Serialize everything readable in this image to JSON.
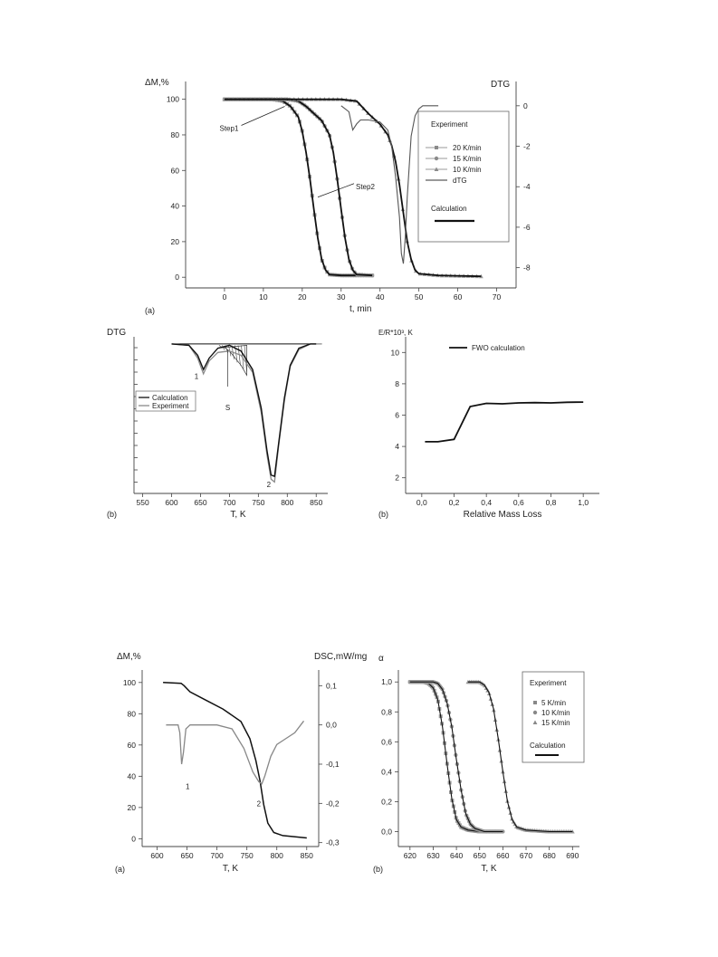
{
  "chart_data": [
    {
      "panel_label": "(a)",
      "type": "line",
      "xlabel": "t, min",
      "ylabel": "ΔM,%",
      "y2label": "DTG",
      "xlim": [
        -10,
        75
      ],
      "ylim": [
        -6,
        110
      ],
      "y2lim": [
        -9,
        1.2
      ],
      "x_ticks": [
        0,
        10,
        20,
        30,
        40,
        50,
        60,
        70
      ],
      "y_ticks": [
        0,
        20,
        40,
        60,
        80,
        100
      ],
      "y2_ticks": [
        0,
        -2,
        -4,
        -6,
        -8
      ],
      "legend": {
        "placement": "right",
        "experiment_title": "Experiment",
        "entries": [
          "20 K/min",
          "15 K/min",
          "10 K/min",
          "dTG"
        ],
        "calculation_title": "Calculation"
      },
      "annotations": [
        {
          "text": "Step1",
          "x": 15.5,
          "y": 96
        },
        {
          "text": "Step2",
          "x": 24,
          "y": 45
        }
      ],
      "series": [
        {
          "name": "20 K/min",
          "x": [
            0,
            12,
            15,
            17,
            19,
            20,
            21,
            22,
            23,
            24,
            25,
            26,
            27,
            30,
            38
          ],
          "y": [
            100,
            100,
            99,
            96,
            90,
            82,
            70,
            55,
            38,
            22,
            10,
            4,
            1.5,
            1,
            1
          ]
        },
        {
          "name": "15 K/min",
          "x": [
            0,
            16,
            19,
            21,
            23,
            25,
            27,
            28,
            29,
            30,
            31,
            32,
            33,
            34,
            38
          ],
          "y": [
            100,
            100,
            99,
            96,
            92,
            88,
            80,
            70,
            55,
            38,
            22,
            10,
            4,
            1.5,
            1
          ]
        },
        {
          "name": "10 K/min",
          "x": [
            0,
            30,
            34,
            37,
            40,
            42,
            43,
            44,
            45,
            46,
            47,
            48,
            49,
            50,
            55,
            66
          ],
          "y": [
            100,
            100,
            99,
            92,
            86,
            80,
            74,
            65,
            52,
            36,
            20,
            10,
            4,
            2,
            1,
            0.5
          ]
        },
        {
          "name": "dTG",
          "axis": "y2",
          "x": [
            30,
            32,
            33,
            34,
            35,
            37,
            40,
            42,
            43,
            44,
            45,
            45.5,
            46,
            46.5,
            47,
            48,
            49,
            50,
            51,
            55
          ],
          "y": [
            0,
            -0.3,
            -1.2,
            -0.9,
            -0.7,
            -0.7,
            -0.8,
            -1.2,
            -2,
            -3.5,
            -5.5,
            -7.3,
            -7.8,
            -6.5,
            -4.5,
            -1.5,
            -0.5,
            -0.15,
            0,
            0
          ]
        }
      ]
    },
    {
      "panel_label": "(b)",
      "type": "line",
      "xlabel": "T, K",
      "ylabel": "DTG",
      "xlim": [
        535,
        870
      ],
      "ylim": [
        -1.05,
        0.05
      ],
      "x_ticks": [
        550,
        600,
        650,
        700,
        750,
        800,
        850
      ],
      "legend": {
        "placement": "left",
        "entries": [
          "Calculation",
          "Experiment"
        ]
      },
      "annotations": [
        {
          "text": "1",
          "x": 643,
          "y": -0.22
        },
        {
          "text": "S",
          "x": 697,
          "y": -0.35
        },
        {
          "text": "2",
          "x": 768,
          "y": -0.98
        }
      ],
      "series": [
        {
          "name": "Calculation",
          "x": [
            600,
            630,
            645,
            655,
            665,
            680,
            700,
            720,
            740,
            755,
            765,
            772,
            778,
            785,
            795,
            805,
            820,
            840,
            850
          ],
          "y": [
            0,
            -0.01,
            -0.08,
            -0.18,
            -0.1,
            -0.03,
            -0.01,
            -0.05,
            -0.18,
            -0.45,
            -0.75,
            -0.92,
            -0.93,
            -0.7,
            -0.38,
            -0.15,
            -0.03,
            0,
            0
          ]
        },
        {
          "name": "Experiment",
          "x": [
            600,
            630,
            645,
            655,
            665,
            680,
            700,
            720,
            740,
            755,
            765,
            772,
            778,
            785,
            795,
            805,
            820,
            840,
            850,
            860
          ],
          "y": [
            0,
            -0.01,
            -0.1,
            -0.21,
            -0.12,
            -0.06,
            -0.05,
            -0.08,
            -0.2,
            -0.48,
            -0.78,
            -0.95,
            -0.97,
            -0.72,
            -0.4,
            -0.16,
            -0.04,
            0,
            0,
            0
          ]
        }
      ]
    },
    {
      "panel_label": "(b)",
      "type": "line",
      "xlabel": "Relative Mass Loss",
      "ylabel": "E/R*10³, K",
      "xlim": [
        -0.1,
        1.1
      ],
      "ylim": [
        1,
        11
      ],
      "x_ticks": [
        "0,0",
        "0,2",
        "0,4",
        "0,6",
        "0,8",
        "1,0"
      ],
      "x_tick_values": [
        0,
        0.2,
        0.4,
        0.6,
        0.8,
        1.0
      ],
      "y_ticks": [
        2,
        4,
        6,
        8,
        10
      ],
      "legend": {
        "placement": "top",
        "entries": [
          "FWO calculation"
        ]
      },
      "series": [
        {
          "name": "FWO calculation",
          "x": [
            0.02,
            0.1,
            0.2,
            0.3,
            0.4,
            0.5,
            0.6,
            0.7,
            0.8,
            0.9,
            1.0
          ],
          "y": [
            4.3,
            4.3,
            4.45,
            6.55,
            6.75,
            6.72,
            6.78,
            6.8,
            6.78,
            6.82,
            6.83
          ]
        }
      ]
    },
    {
      "panel_label": "(a)",
      "type": "line",
      "xlabel": "T, K",
      "ylabel": "ΔM,%",
      "y2label": "DSC,mW/mg",
      "xlim": [
        575,
        870
      ],
      "ylim": [
        -5,
        108
      ],
      "y2lim": [
        -0.31,
        0.14
      ],
      "x_ticks": [
        600,
        650,
        700,
        750,
        800,
        850
      ],
      "y_ticks": [
        0,
        20,
        40,
        60,
        80,
        100
      ],
      "y2_ticks": [
        "0,1",
        "0,0",
        "-0,1",
        "-0,2",
        "-0,3"
      ],
      "y2_tick_values": [
        0.1,
        0,
        -0.1,
        -0.2,
        -0.3
      ],
      "annotations": [
        {
          "text": "1",
          "x": 643,
          "y": 37
        },
        {
          "text": "2",
          "x": 762,
          "y": 26
        }
      ],
      "series": [
        {
          "name": "TG",
          "x": [
            610,
            640,
            645,
            655,
            680,
            710,
            740,
            755,
            765,
            772,
            778,
            785,
            795,
            810,
            850
          ],
          "y": [
            100,
            99.5,
            98,
            94,
            89,
            83,
            75,
            64,
            50,
            37,
            22,
            10,
            4,
            2,
            0.5
          ]
        },
        {
          "name": "DSC",
          "axis": "y2",
          "x": [
            615,
            635,
            638,
            641,
            644,
            648,
            655,
            680,
            700,
            725,
            745,
            760,
            770,
            775,
            780,
            790,
            800,
            810,
            830,
            845
          ],
          "y": [
            0,
            0,
            -0.02,
            -0.1,
            -0.07,
            -0.01,
            0,
            0,
            0,
            -0.01,
            -0.06,
            -0.12,
            -0.145,
            -0.15,
            -0.13,
            -0.08,
            -0.05,
            -0.04,
            -0.02,
            0.01
          ]
        }
      ]
    },
    {
      "panel_label": "(b)",
      "type": "line",
      "xlabel": "T, K",
      "ylabel": "α",
      "xlim": [
        615,
        693
      ],
      "ylim": [
        -0.1,
        1.08
      ],
      "x_ticks": [
        620,
        630,
        640,
        650,
        660,
        670,
        680,
        690
      ],
      "y_ticks": [
        "0,0",
        "0,2",
        "0,4",
        "0,6",
        "0,8",
        "1,0"
      ],
      "y_tick_values": [
        0,
        0.2,
        0.4,
        0.6,
        0.8,
        1.0
      ],
      "legend": {
        "placement": "right",
        "experiment_title": "Experiment",
        "entries": [
          "5  K/min",
          "10 K/min",
          "15 K/min"
        ],
        "calculation_title": "Calculation"
      },
      "series": [
        {
          "name": "5  K/min",
          "x": [
            620,
            626,
            628,
            630,
            632,
            634,
            636,
            638,
            640,
            642,
            645,
            650,
            658
          ],
          "y": [
            1,
            1,
            0.99,
            0.96,
            0.88,
            0.7,
            0.45,
            0.22,
            0.08,
            0.03,
            0.01,
            0,
            0
          ]
        },
        {
          "name": "10 K/min",
          "x": [
            620,
            630,
            632,
            634,
            636,
            638,
            640,
            642,
            644,
            646,
            648,
            652,
            660
          ],
          "y": [
            1,
            1,
            0.99,
            0.95,
            0.86,
            0.7,
            0.48,
            0.28,
            0.12,
            0.05,
            0.02,
            0,
            0
          ]
        },
        {
          "name": "15 K/min",
          "x": [
            645,
            650,
            652,
            654,
            656,
            658,
            660,
            662,
            664,
            666,
            670,
            680,
            690
          ],
          "y": [
            1,
            1,
            0.98,
            0.93,
            0.82,
            0.62,
            0.4,
            0.2,
            0.08,
            0.03,
            0.01,
            0,
            0
          ]
        }
      ]
    }
  ]
}
